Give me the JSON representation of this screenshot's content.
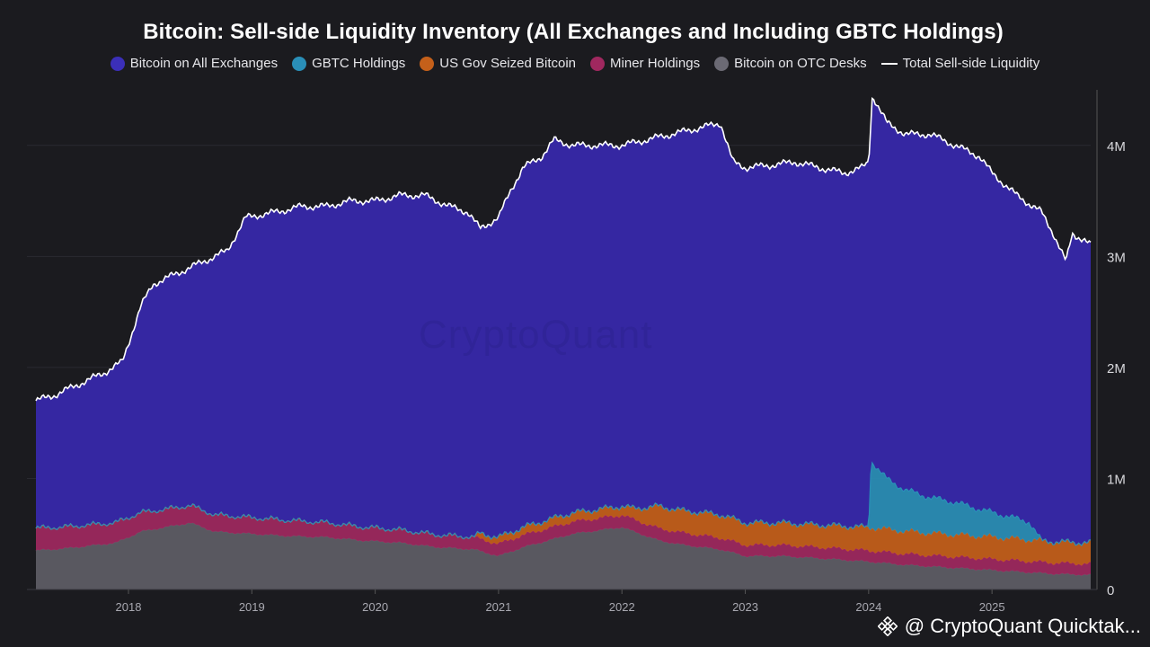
{
  "chart_data": {
    "type": "area",
    "title": "Bitcoin: Sell-side Liquidity Inventory (All Exchanges and Including GBTC Holdings)",
    "xlabel": "",
    "ylabel": "",
    "x_range": [
      2017.25,
      2025.8
    ],
    "ylim": [
      0,
      4500000
    ],
    "y_ticks": [
      {
        "value": 0,
        "label": "0"
      },
      {
        "value": 1000000,
        "label": "1M"
      },
      {
        "value": 2000000,
        "label": "2M"
      },
      {
        "value": 3000000,
        "label": "3M"
      },
      {
        "value": 4000000,
        "label": "4M"
      }
    ],
    "x_ticks": [
      {
        "value": 2018,
        "label": "2018"
      },
      {
        "value": 2019,
        "label": "2019"
      },
      {
        "value": 2020,
        "label": "2020"
      },
      {
        "value": 2021,
        "label": "2021"
      },
      {
        "value": 2022,
        "label": "2022"
      },
      {
        "value": 2023,
        "label": "2023"
      },
      {
        "value": 2024,
        "label": "2024"
      },
      {
        "value": 2025,
        "label": "2025"
      }
    ],
    "grid": true,
    "legend_position": "top-center",
    "series": [
      {
        "name": "Bitcoin on OTC Desks",
        "color": "#5e5d66",
        "kind": "stacked-area",
        "points": [
          [
            2017.25,
            350000
          ],
          [
            2017.5,
            370000
          ],
          [
            2017.9,
            420000
          ],
          [
            2018.1,
            520000
          ],
          [
            2018.3,
            560000
          ],
          [
            2018.5,
            600000
          ],
          [
            2018.7,
            520000
          ],
          [
            2019.0,
            500000
          ],
          [
            2019.3,
            480000
          ],
          [
            2019.6,
            470000
          ],
          [
            2019.9,
            440000
          ],
          [
            2020.2,
            420000
          ],
          [
            2020.5,
            380000
          ],
          [
            2020.8,
            360000
          ],
          [
            2021.0,
            300000
          ],
          [
            2021.2,
            380000
          ],
          [
            2021.4,
            440000
          ],
          [
            2021.6,
            500000
          ],
          [
            2021.8,
            530000
          ],
          [
            2022.0,
            560000
          ],
          [
            2022.1,
            520000
          ],
          [
            2022.3,
            440000
          ],
          [
            2022.5,
            400000
          ],
          [
            2022.8,
            360000
          ],
          [
            2023.0,
            300000
          ],
          [
            2023.3,
            300000
          ],
          [
            2023.6,
            280000
          ],
          [
            2024.0,
            250000
          ],
          [
            2024.3,
            220000
          ],
          [
            2024.6,
            200000
          ],
          [
            2024.9,
            180000
          ],
          [
            2025.2,
            160000
          ],
          [
            2025.5,
            140000
          ],
          [
            2025.8,
            130000
          ]
        ]
      },
      {
        "name": "Miner Holdings",
        "color": "#a0285f",
        "kind": "stacked-area",
        "points": [
          [
            2017.25,
            200000
          ],
          [
            2017.9,
            180000
          ],
          [
            2018.3,
            160000
          ],
          [
            2018.7,
            150000
          ],
          [
            2019.3,
            140000
          ],
          [
            2019.9,
            120000
          ],
          [
            2020.5,
            110000
          ],
          [
            2021.0,
            110000
          ],
          [
            2021.5,
            110000
          ],
          [
            2022.0,
            110000
          ],
          [
            2022.5,
            110000
          ],
          [
            2023.0,
            100000
          ],
          [
            2023.5,
            100000
          ],
          [
            2024.0,
            100000
          ],
          [
            2024.5,
            100000
          ],
          [
            2025.0,
            100000
          ],
          [
            2025.8,
            100000
          ]
        ]
      },
      {
        "name": "US Gov Seized Bitcoin",
        "color": "#c5601a",
        "kind": "stacked-area",
        "points": [
          [
            2017.25,
            0
          ],
          [
            2020.8,
            0
          ],
          [
            2020.85,
            50000
          ],
          [
            2021.0,
            60000
          ],
          [
            2021.2,
            70000
          ],
          [
            2021.5,
            80000
          ],
          [
            2022.0,
            80000
          ],
          [
            2022.1,
            100000
          ],
          [
            2022.3,
            200000
          ],
          [
            2022.5,
            200000
          ],
          [
            2022.8,
            210000
          ],
          [
            2023.0,
            200000
          ],
          [
            2023.5,
            200000
          ],
          [
            2024.0,
            210000
          ],
          [
            2024.5,
            200000
          ],
          [
            2025.0,
            200000
          ],
          [
            2025.5,
            190000
          ],
          [
            2025.8,
            190000
          ]
        ]
      },
      {
        "name": "GBTC Holdings",
        "color": "#2a8fb8",
        "kind": "stacked-area",
        "points": [
          [
            2017.25,
            0
          ],
          [
            2024.0,
            0
          ],
          [
            2024.02,
            600000
          ],
          [
            2024.15,
            450000
          ],
          [
            2024.3,
            370000
          ],
          [
            2024.5,
            320000
          ],
          [
            2024.7,
            290000
          ],
          [
            2024.9,
            240000
          ],
          [
            2025.1,
            200000
          ],
          [
            2025.3,
            160000
          ],
          [
            2025.4,
            0
          ],
          [
            2025.8,
            0
          ]
        ]
      },
      {
        "name": "Bitcoin on All Exchanges",
        "color": "#3527a2",
        "kind": "stacked-area-to-total"
      },
      {
        "name": "Total Sell-side Liquidity",
        "color": "#ffffff",
        "kind": "line",
        "points": [
          [
            2017.25,
            1700000
          ],
          [
            2017.4,
            1750000
          ],
          [
            2017.6,
            1850000
          ],
          [
            2017.8,
            1950000
          ],
          [
            2017.95,
            2050000
          ],
          [
            2018.1,
            2550000
          ],
          [
            2018.2,
            2750000
          ],
          [
            2018.4,
            2850000
          ],
          [
            2018.6,
            2950000
          ],
          [
            2018.8,
            3050000
          ],
          [
            2018.95,
            3350000
          ],
          [
            2019.2,
            3400000
          ],
          [
            2019.4,
            3450000
          ],
          [
            2019.6,
            3450000
          ],
          [
            2019.8,
            3500000
          ],
          [
            2020.0,
            3500000
          ],
          [
            2020.2,
            3550000
          ],
          [
            2020.4,
            3550000
          ],
          [
            2020.6,
            3450000
          ],
          [
            2020.75,
            3400000
          ],
          [
            2020.85,
            3250000
          ],
          [
            2021.0,
            3350000
          ],
          [
            2021.1,
            3600000
          ],
          [
            2021.2,
            3800000
          ],
          [
            2021.35,
            3900000
          ],
          [
            2021.45,
            4050000
          ],
          [
            2021.6,
            4000000
          ],
          [
            2021.8,
            4000000
          ],
          [
            2022.0,
            4000000
          ],
          [
            2022.2,
            4050000
          ],
          [
            2022.4,
            4100000
          ],
          [
            2022.6,
            4150000
          ],
          [
            2022.8,
            4200000
          ],
          [
            2022.9,
            3850000
          ],
          [
            2023.0,
            3800000
          ],
          [
            2023.2,
            3820000
          ],
          [
            2023.4,
            3850000
          ],
          [
            2023.6,
            3800000
          ],
          [
            2023.8,
            3750000
          ],
          [
            2023.95,
            3800000
          ],
          [
            2024.0,
            3850000
          ],
          [
            2024.03,
            4450000
          ],
          [
            2024.15,
            4200000
          ],
          [
            2024.3,
            4100000
          ],
          [
            2024.5,
            4100000
          ],
          [
            2024.7,
            4000000
          ],
          [
            2024.9,
            3900000
          ],
          [
            2025.0,
            3750000
          ],
          [
            2025.2,
            3550000
          ],
          [
            2025.4,
            3400000
          ],
          [
            2025.5,
            3200000
          ],
          [
            2025.6,
            2950000
          ],
          [
            2025.65,
            3200000
          ],
          [
            2025.75,
            3150000
          ],
          [
            2025.8,
            3100000
          ]
        ]
      }
    ]
  },
  "footer": {
    "handle": "@ CryptoQuant Quicktak..."
  },
  "watermark": "CryptoQuant"
}
